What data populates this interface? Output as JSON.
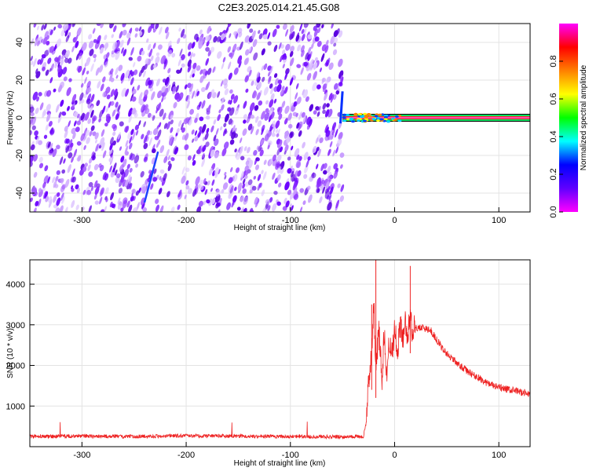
{
  "figure": {
    "title": "C2E3.2025.014.21.45.G08"
  },
  "chart_data": [
    {
      "type": "heatmap",
      "title": "",
      "xlabel": "Height of straight line (km)",
      "ylabel": "Frequency (Hz)",
      "xlim": [
        -350,
        130
      ],
      "ylim": [
        -50,
        50
      ],
      "xticks": [
        -300,
        -200,
        -100,
        0,
        100
      ],
      "yticks": [
        -40,
        -20,
        0,
        20,
        40
      ],
      "grid": true,
      "noise_region_x": [
        -350,
        -50
      ],
      "signal_band": {
        "x": [
          -50,
          130
        ],
        "frequency_hz": 0
      },
      "colorbar": {
        "label": "Normalized spectral amplitude",
        "range": [
          0,
          1
        ],
        "ticks": [
          0.0,
          0.2,
          0.4,
          0.6,
          0.8
        ],
        "tick_labels": [
          "0.0",
          "0.2",
          "0.4",
          "0.6",
          "0.8"
        ],
        "colormap": [
          "#ff00ff",
          "#6000ff",
          "#0000ff",
          "#00ffff",
          "#00ff00",
          "#ffff00",
          "#ff8000",
          "#ff0000",
          "#ff00ff"
        ]
      }
    },
    {
      "type": "line",
      "title": "",
      "xlabel": "Height of straight line (km)",
      "ylabel": "SNR (10 * v/v)",
      "xlim": [
        -350,
        130
      ],
      "ylim": [
        0,
        4600
      ],
      "xticks": [
        -300,
        -200,
        -100,
        0,
        100
      ],
      "yticks": [
        1000,
        2000,
        3000,
        4000
      ],
      "grid": true,
      "series": [
        {
          "color": "#ee2222",
          "x": [
            -350,
            -300,
            -250,
            -200,
            -150,
            -100,
            -50,
            -30,
            -27,
            -25,
            -22,
            -20,
            -18,
            -15,
            -12,
            -10,
            -8,
            -5,
            -3,
            0,
            3,
            5,
            8,
            10,
            12,
            15,
            17,
            20,
            25,
            30,
            35,
            40,
            45,
            50,
            60,
            70,
            80,
            90,
            100,
            110,
            120,
            130
          ],
          "y": [
            250,
            260,
            250,
            270,
            260,
            250,
            240,
            250,
            600,
            1700,
            2200,
            3500,
            2000,
            2800,
            1600,
            2900,
            1700,
            2600,
            2200,
            2900,
            2400,
            3000,
            2600,
            3100,
            2800,
            3100,
            2900,
            2900,
            2950,
            2900,
            2850,
            2650,
            2450,
            2300,
            2050,
            1850,
            1700,
            1550,
            1450,
            1400,
            1350,
            1300
          ]
        }
      ]
    }
  ]
}
